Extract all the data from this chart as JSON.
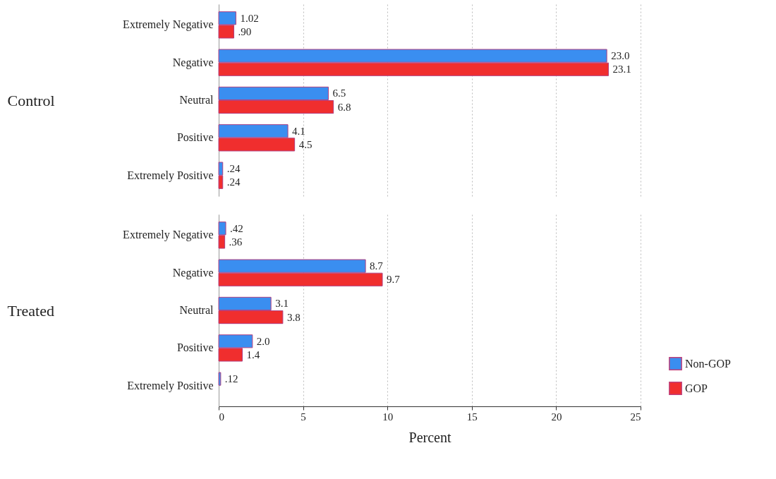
{
  "chart_data": [
    {
      "type": "bar",
      "orientation": "horizontal",
      "ylabel": "Control",
      "categories": [
        "Extremely Negative",
        "Negative",
        "Neutral",
        "Positive",
        "Extremely Positive"
      ],
      "series": [
        {
          "color": "#3a8ef0",
          "values": [
            1.02,
            23.0,
            6.5,
            4.1,
            0.24
          ],
          "value_labels": [
            "1.02",
            "23.0",
            "6.5",
            "4.1",
            ".24"
          ]
        },
        {
          "color": "#f02e2e",
          "values": [
            0.9,
            23.1,
            6.8,
            4.5,
            0.24
          ],
          "value_labels": [
            ".90",
            "23.1",
            "6.8",
            "4.5",
            ".24"
          ]
        }
      ],
      "xlim": [
        0,
        25
      ],
      "xticks": [
        0,
        5,
        10,
        15,
        20,
        25
      ],
      "grid": "x",
      "tick_labels": "y"
    },
    {
      "type": "bar",
      "orientation": "horizontal",
      "ylabel": "Treated",
      "xlabel": "Percent",
      "categories": [
        "Extremely Negative",
        "Negative",
        "Neutral",
        "Positive",
        "Extremely Positive"
      ],
      "series": [
        {
          "name": "Non-GOP",
          "color": "#3a8ef0",
          "values": [
            0.42,
            8.7,
            3.1,
            2.0,
            0.12
          ],
          "value_labels": [
            ".42",
            "8.7",
            "3.1",
            "2.0",
            ".12"
          ]
        },
        {
          "name": "GOP",
          "color": "#f02e2e",
          "values": [
            0.36,
            9.7,
            3.8,
            1.4,
            null
          ],
          "value_labels": [
            ".36",
            "9.7",
            "3.8",
            "1.4",
            null
          ]
        }
      ],
      "xlim": [
        0,
        25
      ],
      "xticks": [
        0,
        5,
        10,
        15,
        20,
        25
      ],
      "grid": "x",
      "legend": "bottom right"
    }
  ]
}
